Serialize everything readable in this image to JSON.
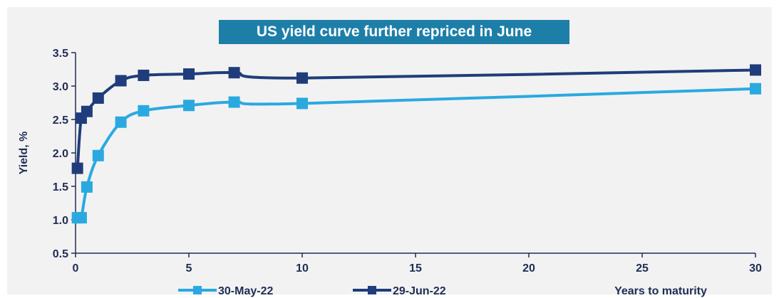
{
  "chart_data": {
    "type": "line",
    "title": "US yield curve further repriced in June",
    "xlabel": "Years to maturity",
    "ylabel": "Yield, %",
    "xlim": [
      0,
      30
    ],
    "ylim": [
      0.5,
      3.5
    ],
    "xticks": [
      "0",
      "5",
      "10",
      "15",
      "20",
      "25",
      "30"
    ],
    "yticks": [
      "0.5",
      "1.0",
      "1.5",
      "2.0",
      "2.5",
      "3.0",
      "3.5"
    ],
    "grid": false,
    "legend_position": "bottom",
    "series": [
      {
        "name": "30-May-22",
        "color": "#2aa9e0",
        "x": [
          0.0833,
          0.25,
          0.5,
          1,
          2,
          3,
          5,
          7,
          10,
          30
        ],
        "y": [
          1.03,
          1.03,
          1.49,
          1.96,
          2.46,
          2.63,
          2.71,
          2.76,
          2.74,
          2.96
        ]
      },
      {
        "name": "29-Jun-22",
        "color": "#1f3d7a",
        "x": [
          0.0833,
          0.25,
          0.5,
          1,
          2,
          3,
          5,
          7,
          10,
          30
        ],
        "y": [
          1.77,
          2.52,
          2.62,
          2.82,
          3.08,
          3.16,
          3.18,
          3.2,
          3.12,
          3.24
        ]
      }
    ]
  }
}
